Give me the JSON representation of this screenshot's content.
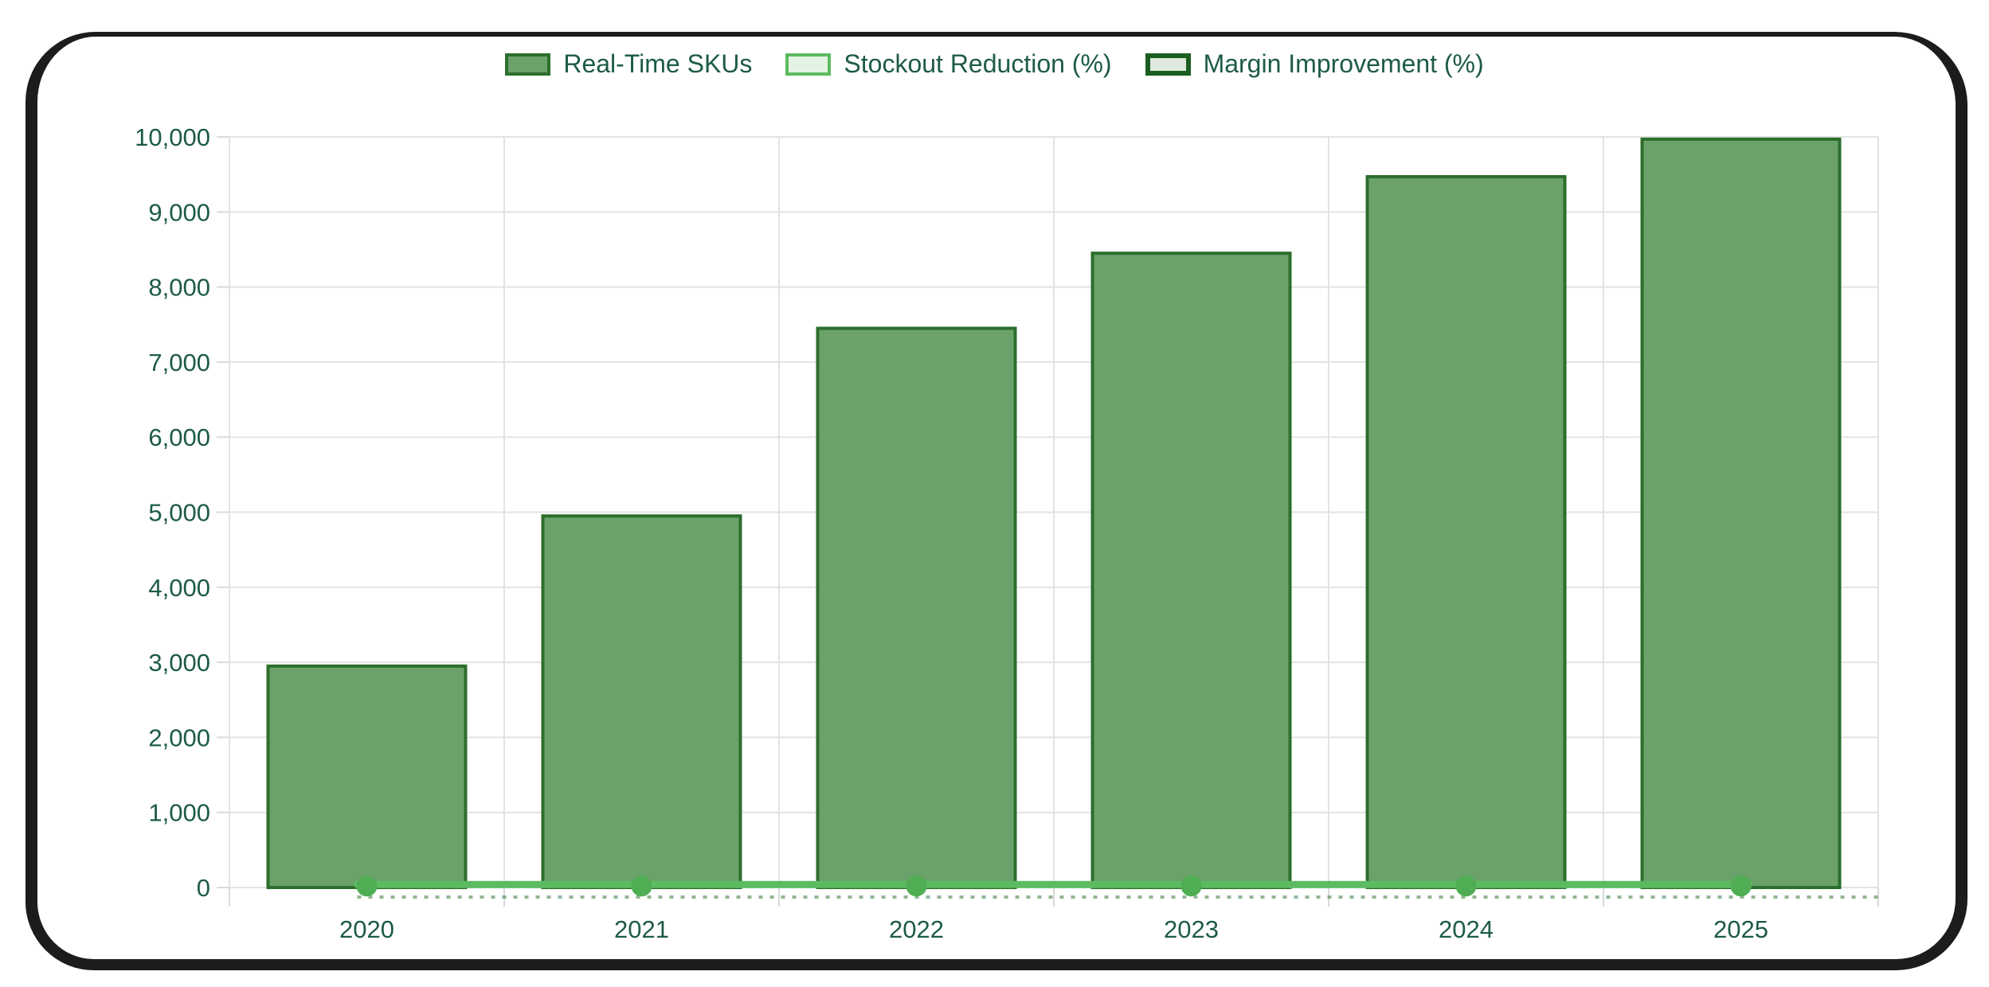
{
  "window": {
    "frame_color": "#1c1c1e",
    "background_color": "#ffffff"
  },
  "colors": {
    "text": "#1d5b46",
    "grid": "#e3e3e3",
    "axis_tick": "#d9d9d9"
  },
  "chart_data": {
    "type": "bar",
    "title": "",
    "xlabel": "",
    "ylabel": "",
    "categories": [
      "2020",
      "2021",
      "2022",
      "2023",
      "2024",
      "2025"
    ],
    "series": [
      {
        "name": "Real-Time SKUs",
        "type": "bar",
        "values": [
          2950,
          4950,
          7450,
          8450,
          9470,
          9970
        ],
        "fill": "#6aa269",
        "border": "#2c6e2c",
        "swatch_fill": "#6aa269",
        "swatch_border": "#2c6e2c",
        "swatch_border_width": 4
      },
      {
        "name": "Stockout Reduction (%)",
        "type": "line",
        "values": [
          40,
          40,
          40,
          40,
          40,
          40
        ],
        "line_color": "#5cbb61",
        "marker_color": "#4fae53",
        "swatch_fill": "#e3f3e3",
        "swatch_border": "#5cbb61",
        "swatch_border_width": 4
      },
      {
        "name": "Margin Improvement (%)",
        "type": "line",
        "values": [
          15,
          15,
          15,
          15,
          15,
          15
        ],
        "line_color": "#3c7a3f",
        "line_dashed": true,
        "swatch_fill": "#dfe9df",
        "swatch_border": "#1b5e20",
        "swatch_border_width": 6
      }
    ],
    "ylim": [
      0,
      10000
    ],
    "ytick_step": 1000,
    "yticklabels": [
      "0",
      "1,000",
      "2,000",
      "3,000",
      "4,000",
      "5,000",
      "6,000",
      "7,000",
      "8,000",
      "9,000",
      "10,000"
    ],
    "grid": true,
    "legend_position": "top"
  }
}
